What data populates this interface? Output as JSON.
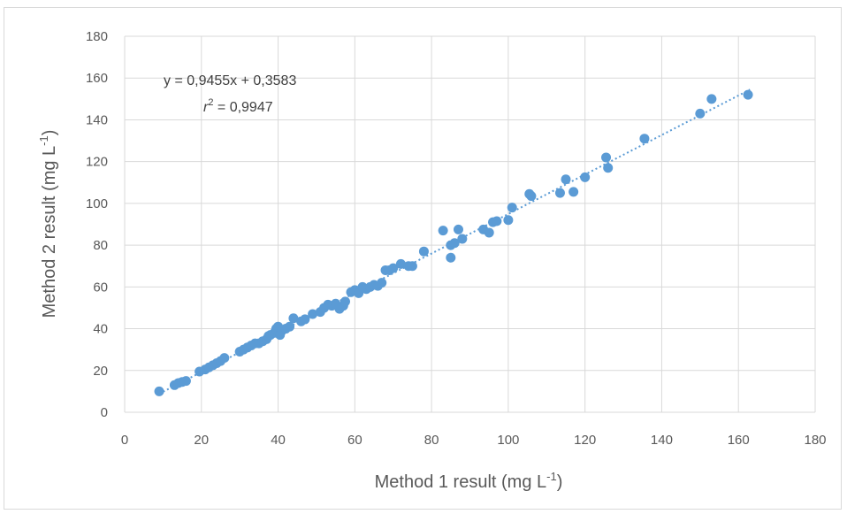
{
  "chart_data": {
    "type": "scatter",
    "title": "",
    "xlabel_main": "Method 1 result (mg L",
    "xlabel_sup": "-1",
    "xlabel_end": ")",
    "ylabel_main": "Method 2 result (mg L",
    "ylabel_sup": "-1",
    "ylabel_end": ")",
    "xlim": [
      0,
      180
    ],
    "ylim": [
      0,
      180
    ],
    "xticks": [
      0,
      20,
      40,
      60,
      80,
      100,
      120,
      140,
      160,
      180
    ],
    "yticks": [
      0,
      20,
      40,
      60,
      80,
      100,
      120,
      140,
      160,
      180
    ],
    "grid": true,
    "marker_color": "#5b9bd5",
    "trendline": {
      "slope": 0.9455,
      "intercept": 0.3583,
      "x_range": [
        9,
        163
      ],
      "style": "dotted",
      "equation_text": "y = 0,9455x  + 0,3583",
      "r2_r": "r",
      "r2_sup": "2",
      "r2_value": " = 0,9947"
    },
    "series": [
      {
        "points": [
          [
            9,
            10
          ],
          [
            13,
            13
          ],
          [
            14,
            14
          ],
          [
            15,
            14.5
          ],
          [
            16,
            15
          ],
          [
            19.5,
            19.5
          ],
          [
            21,
            20.5
          ],
          [
            22,
            21.5
          ],
          [
            23,
            22.5
          ],
          [
            24,
            23.5
          ],
          [
            25,
            24.5
          ],
          [
            26,
            26
          ],
          [
            30,
            29
          ],
          [
            31,
            30
          ],
          [
            32,
            31
          ],
          [
            33,
            32
          ],
          [
            34,
            33
          ],
          [
            35,
            33
          ],
          [
            36,
            34
          ],
          [
            37,
            35
          ],
          [
            37.5,
            36.5
          ],
          [
            38,
            37
          ],
          [
            39,
            38
          ],
          [
            39.5,
            40
          ],
          [
            40,
            41
          ],
          [
            40.5,
            37
          ],
          [
            41,
            39
          ],
          [
            42,
            40
          ],
          [
            43,
            41
          ],
          [
            44,
            45
          ],
          [
            46,
            43.5
          ],
          [
            47,
            44.5
          ],
          [
            49,
            47
          ],
          [
            51,
            48
          ],
          [
            52,
            50
          ],
          [
            53,
            51.5
          ],
          [
            54,
            51
          ],
          [
            55,
            52
          ],
          [
            56,
            49.5
          ],
          [
            57,
            51
          ],
          [
            57.5,
            53
          ],
          [
            59,
            57.5
          ],
          [
            60,
            58.5
          ],
          [
            61,
            57
          ],
          [
            62,
            60
          ],
          [
            63,
            59
          ],
          [
            64,
            60
          ],
          [
            65,
            61
          ],
          [
            66,
            60.5
          ],
          [
            67,
            62
          ],
          [
            68,
            68
          ],
          [
            69,
            68
          ],
          [
            70,
            69
          ],
          [
            72,
            71
          ],
          [
            74,
            70
          ],
          [
            75,
            70
          ],
          [
            78,
            77
          ],
          [
            83,
            87
          ],
          [
            85,
            80
          ],
          [
            85,
            74
          ],
          [
            86,
            81
          ],
          [
            87,
            87.5
          ],
          [
            88,
            83
          ],
          [
            93.5,
            87.5
          ],
          [
            95,
            86
          ],
          [
            96,
            91
          ],
          [
            97,
            91.5
          ],
          [
            100,
            92
          ],
          [
            101,
            98
          ],
          [
            105.5,
            104.5
          ],
          [
            106,
            103.5
          ],
          [
            113.5,
            105
          ],
          [
            115,
            111.5
          ],
          [
            117,
            105.5
          ],
          [
            120,
            112.5
          ],
          [
            125.5,
            122
          ],
          [
            126,
            117
          ],
          [
            135.5,
            131
          ],
          [
            150,
            143
          ],
          [
            153,
            150
          ],
          [
            162.5,
            152
          ]
        ]
      }
    ]
  }
}
